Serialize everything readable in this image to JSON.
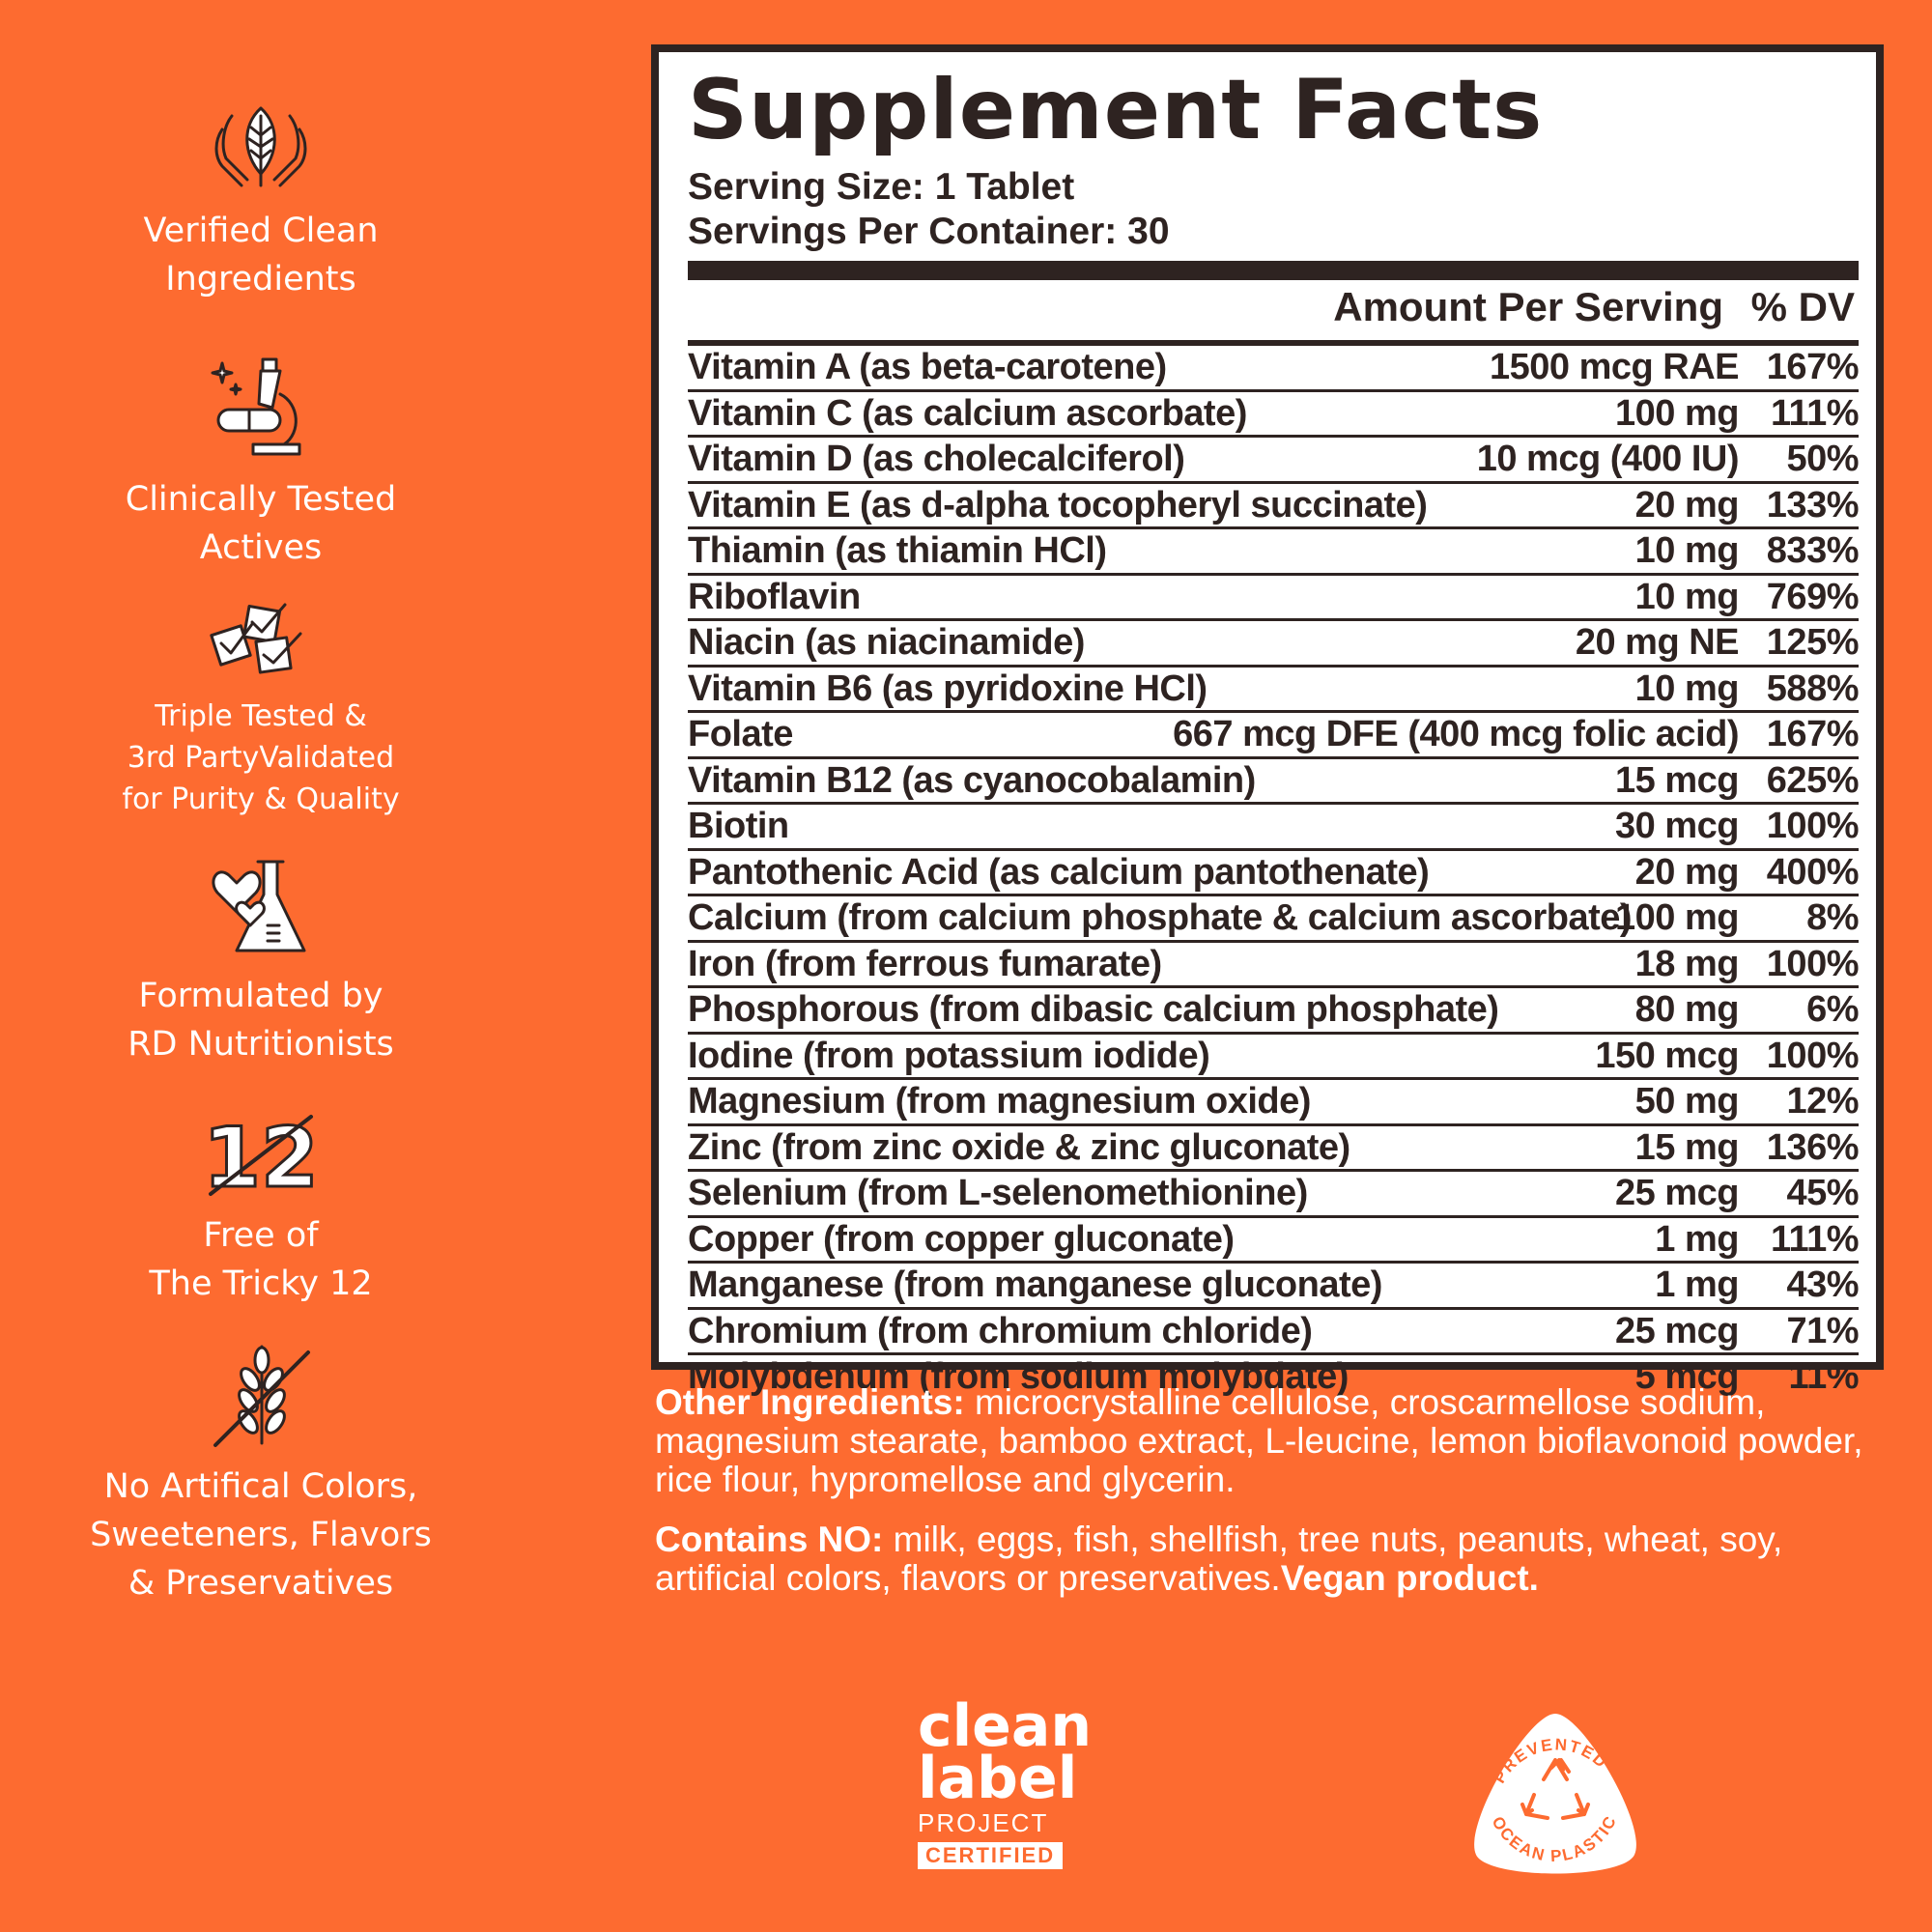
{
  "features": [
    {
      "icon": "hands-leaf-icon",
      "text": "Verified Clean\nIngredients"
    },
    {
      "icon": "microscope-pill-icon",
      "text": "Clinically Tested\nActives"
    },
    {
      "icon": "triple-check-icon",
      "text": "Triple Tested &\n3rd PartyValidated\nfor Purity & Quality"
    },
    {
      "icon": "heart-flask-icon",
      "text": "Formulated by\nRD Nutritionists"
    },
    {
      "icon": "crossed-12-icon",
      "text": "Free of\nThe Tricky 12",
      "glyph": "12"
    },
    {
      "icon": "no-wheat-icon",
      "text": "No Artifical Colors,\nSweeteners, Flavors\n& Preservatives"
    }
  ],
  "facts": {
    "title": "Supplement Facts",
    "serving_size": "Serving Size: 1 Tablet",
    "servings_per_container": "Servings Per Container: 30",
    "amount_header": "Amount Per Serving",
    "dv_header": "% DV",
    "rows": [
      {
        "name": "Vitamin A (as beta-carotene)",
        "amount": "1500 mcg RAE",
        "dv": "167%"
      },
      {
        "name": "Vitamin C (as calcium ascorbate)",
        "amount": "100 mg",
        "dv": "111%"
      },
      {
        "name": "Vitamin D (as cholecalciferol)",
        "amount": "10 mcg (400 IU)",
        "dv": "50%"
      },
      {
        "name": "Vitamin E (as d-alpha tocopheryl succinate)",
        "amount": "20 mg",
        "dv": "133%"
      },
      {
        "name": "Thiamin (as thiamin HCl)",
        "amount": "10 mg",
        "dv": "833%"
      },
      {
        "name": "Riboflavin",
        "amount": "10 mg",
        "dv": "769%"
      },
      {
        "name": "Niacin (as niacinamide)",
        "amount": "20 mg NE",
        "dv": "125%"
      },
      {
        "name": "Vitamin B6 (as pyridoxine HCl)",
        "amount": "10 mg",
        "dv": "588%"
      },
      {
        "name": "Folate",
        "amount": "667 mcg DFE (400 mcg folic acid)",
        "dv": "167%"
      },
      {
        "name": "Vitamin B12 (as cyanocobalamin)",
        "amount": "15 mcg",
        "dv": "625%"
      },
      {
        "name": "Biotin",
        "amount": "30 mcg",
        "dv": "100%"
      },
      {
        "name": "Pantothenic Acid (as calcium pantothenate)",
        "amount": "20 mg",
        "dv": "400%"
      },
      {
        "name": "Calcium (from calcium phosphate & calcium ascorbate)",
        "amount": "100 mg",
        "dv": "8%"
      },
      {
        "name": "Iron (from ferrous fumarate)",
        "amount": "18 mg",
        "dv": "100%"
      },
      {
        "name": "Phosphorous (from dibasic calcium phosphate)",
        "amount": "80 mg",
        "dv": "6%"
      },
      {
        "name": "Iodine (from potassium iodide)",
        "amount": "150 mcg",
        "dv": "100%"
      },
      {
        "name": "Magnesium (from magnesium oxide)",
        "amount": "50 mg",
        "dv": "12%"
      },
      {
        "name": "Zinc (from zinc oxide & zinc gluconate)",
        "amount": "15 mg",
        "dv": "136%"
      },
      {
        "name": "Selenium (from L-selenomethionine)",
        "amount": "25 mcg",
        "dv": "45%"
      },
      {
        "name": "Copper (from copper gluconate)",
        "amount": "1 mg",
        "dv": "111%"
      },
      {
        "name": "Manganese (from manganese gluconate)",
        "amount": "1 mg",
        "dv": "43%"
      },
      {
        "name": "Chromium (from chromium chloride)",
        "amount": "25 mcg",
        "dv": "71%"
      },
      {
        "name": "Molybdenum (from sodium molybdate)",
        "amount": "5 mcg",
        "dv": "11%"
      }
    ]
  },
  "other_ingredients": {
    "label": "Other Ingredients:",
    "text": " microcrystalline cellulose, croscarmellose sodium, magnesium stearate, bamboo extract, L-leucine, lemon bioflavonoid powder, rice flour, hypromellose and glycerin."
  },
  "contains": {
    "label": "Contains NO:",
    "text": " milk, eggs, fish, shellfish, tree nuts, peanuts, wheat, soy, artificial colors, flavors or preservatives.",
    "vegan": "Vegan product."
  },
  "clean_label": {
    "line1": "clean",
    "line2": "label",
    "project": "PROJECT",
    "certified": "CERTIFIED"
  },
  "ocean_badge": {
    "top": "PREVENTED",
    "bottom": "OCEAN PLASTIC"
  },
  "colors": {
    "background": "#fd6b30",
    "ink": "#2e2321",
    "panel": "#ffffff"
  }
}
